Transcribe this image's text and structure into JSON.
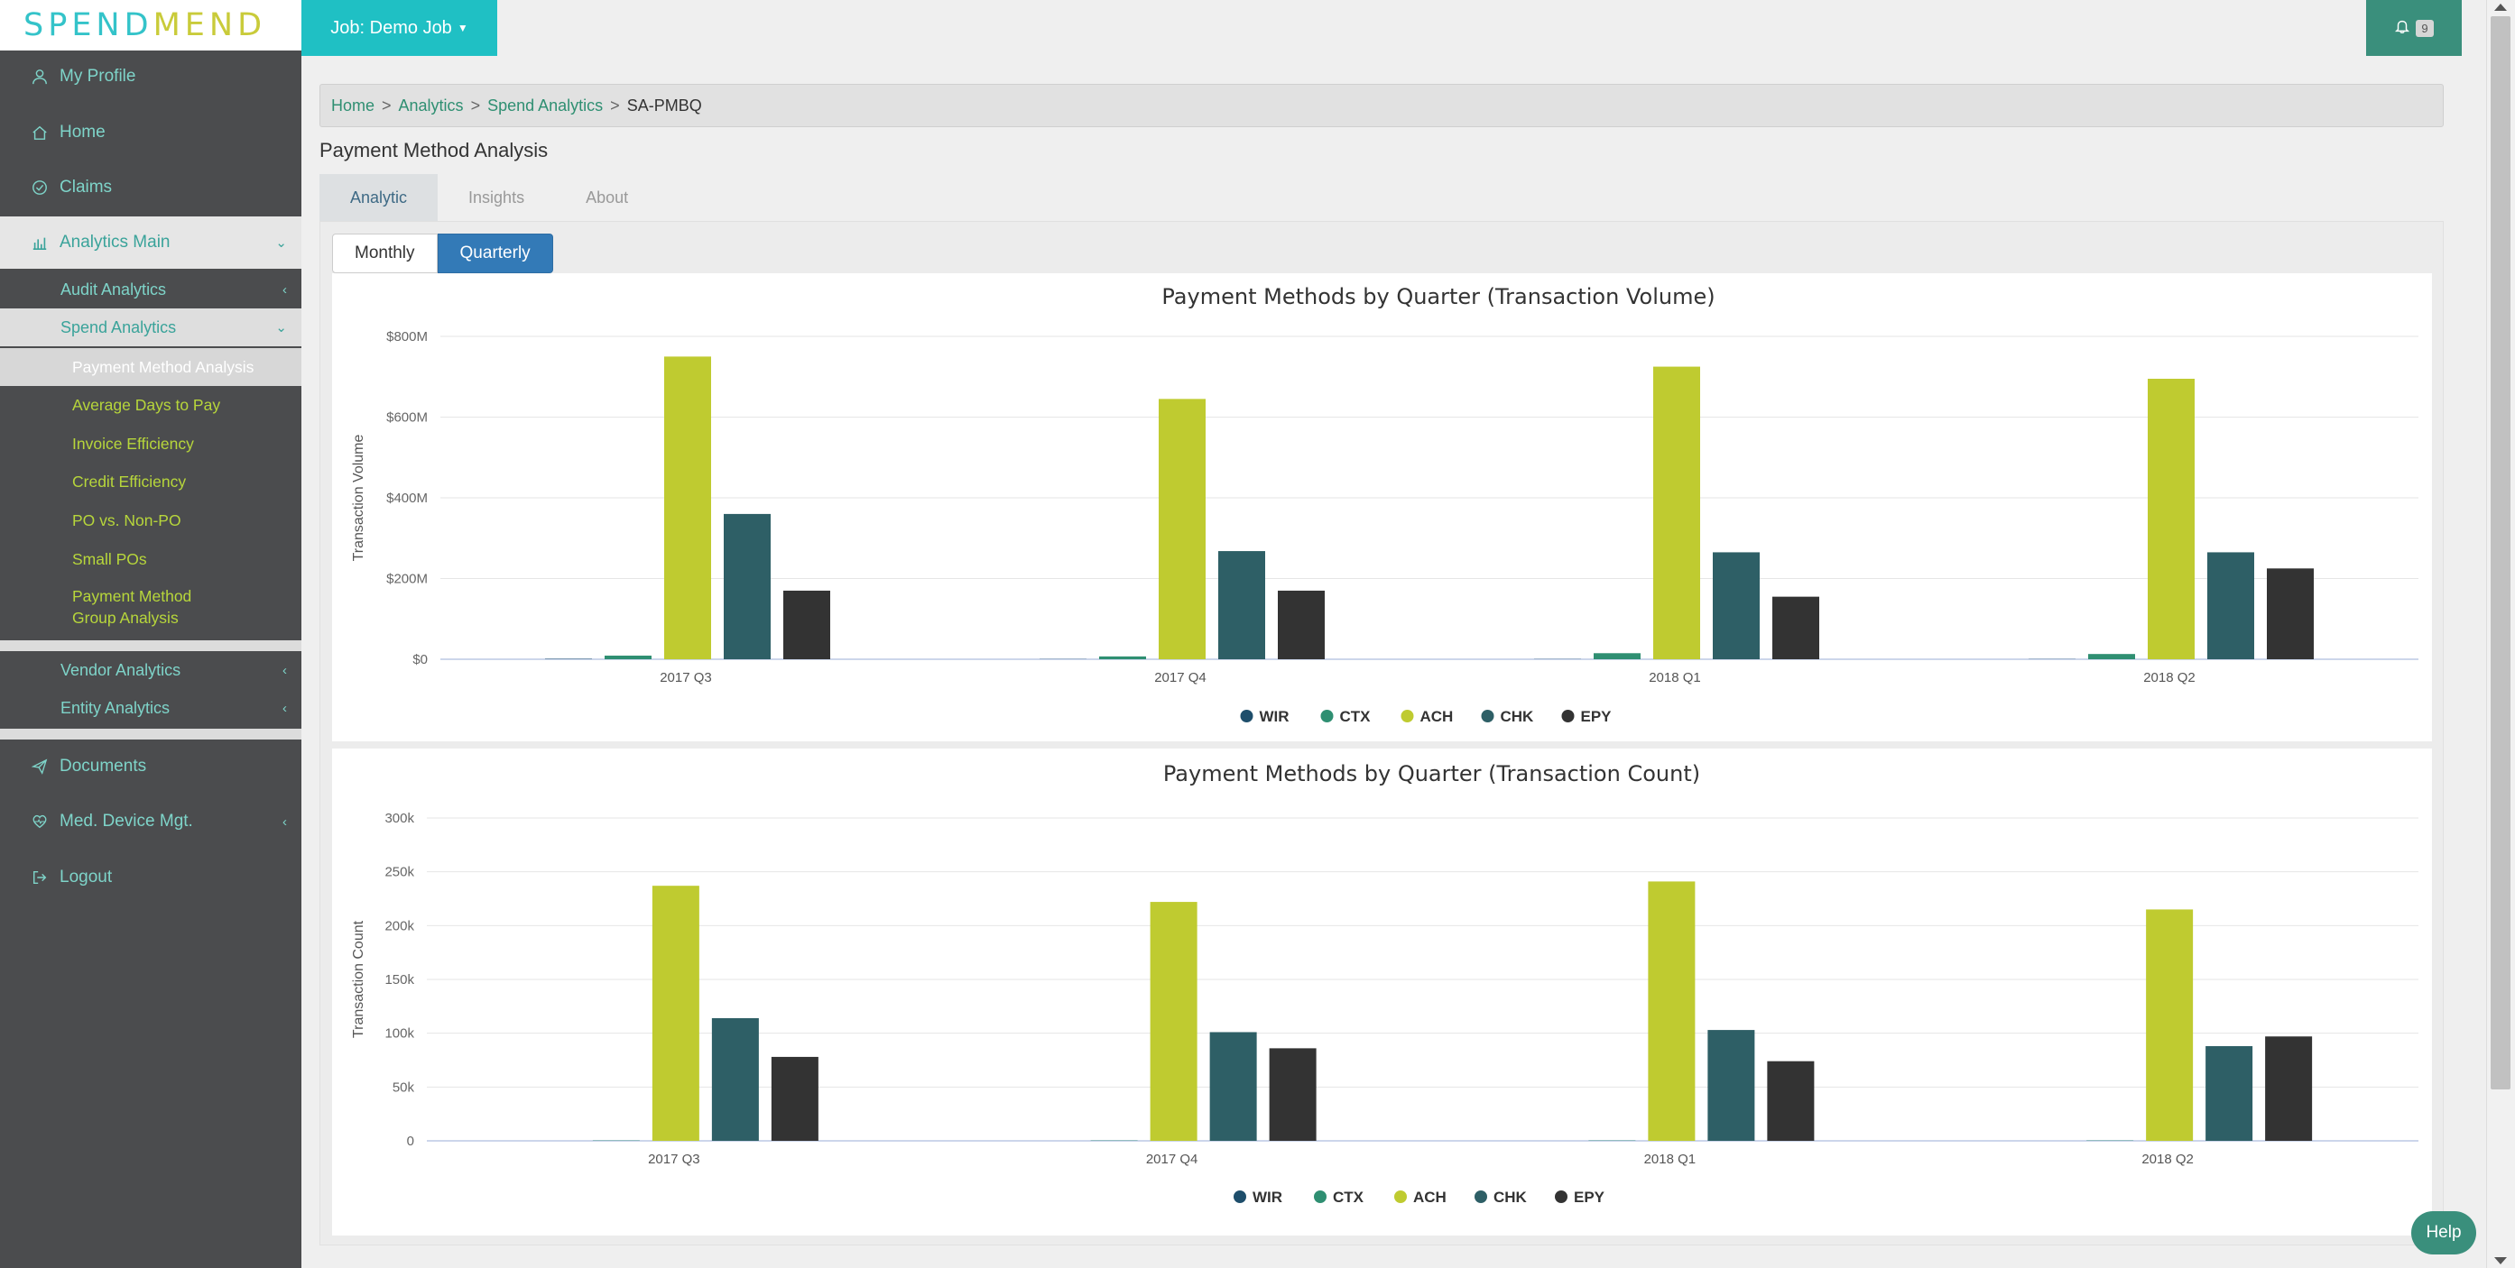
{
  "brand": {
    "part1": "SPEND",
    "part2": "MEND"
  },
  "sidebar": {
    "items": [
      {
        "label": "My Profile",
        "icon": "user-icon"
      },
      {
        "label": "Home",
        "icon": "home-icon"
      },
      {
        "label": "Claims",
        "icon": "check-circle-icon"
      },
      {
        "label": "Analytics Main",
        "icon": "bar-chart-icon"
      },
      {
        "label": "Documents",
        "icon": "paper-plane-icon"
      },
      {
        "label": "Med. Device Mgt.",
        "icon": "heartbeat-icon"
      },
      {
        "label": "Logout",
        "icon": "sign-out-icon"
      }
    ],
    "analytics_sub": [
      "Audit Analytics",
      "Spend Analytics",
      "Vendor Analytics",
      "Entity Analytics"
    ],
    "spend_sub": [
      "Payment Method Analysis",
      "Average Days to Pay",
      "Invoice Efficiency",
      "Credit Efficiency",
      "PO vs. Non-PO",
      "Small POs",
      "Payment Method Group Analysis"
    ]
  },
  "topbar": {
    "job_label": "Job: Demo Job",
    "notification_count": "9"
  },
  "breadcrumb": {
    "home": "Home",
    "analytics": "Analytics",
    "spend": "Spend Analytics",
    "current": "SA-PMBQ"
  },
  "page_title": "Payment Method Analysis",
  "tabs": [
    "Analytic",
    "Insights",
    "About"
  ],
  "period_toggle": {
    "monthly": "Monthly",
    "quarterly": "Quarterly",
    "selected": "Quarterly"
  },
  "help_label": "Help",
  "colors": {
    "WIR": "#1e4e6b",
    "CTX": "#2f8f72",
    "ACH": "#bfcb30",
    "CHK": "#2e5f66",
    "EPY": "#333333"
  },
  "chart_data": [
    {
      "type": "bar",
      "title": "Payment Methods by Quarter (Transaction Volume)",
      "ylabel": "Transaction Volume",
      "categories": [
        "2017 Q3",
        "2017 Q4",
        "2018 Q1",
        "2018 Q2"
      ],
      "yticks": [
        "$0",
        "$200M",
        "$400M",
        "$600M",
        "$800M"
      ],
      "ylim": [
        0,
        800
      ],
      "series": [
        {
          "name": "WIR",
          "values": [
            1,
            0.5,
            0.5,
            0.5
          ]
        },
        {
          "name": "CTX",
          "values": [
            9,
            7,
            15,
            13
          ]
        },
        {
          "name": "ACH",
          "values": [
            750,
            645,
            725,
            695
          ]
        },
        {
          "name": "CHK",
          "values": [
            360,
            268,
            265,
            265
          ]
        },
        {
          "name": "EPY",
          "values": [
            170,
            170,
            155,
            225
          ]
        }
      ],
      "legend": "bottom"
    },
    {
      "type": "bar",
      "title": "Payment Methods by Quarter (Transaction Count)",
      "ylabel": "Transaction Count",
      "categories": [
        "2017 Q3",
        "2017 Q4",
        "2018 Q1",
        "2018 Q2"
      ],
      "yticks": [
        "0",
        "50k",
        "100k",
        "150k",
        "200k",
        "250k",
        "300k"
      ],
      "ylim": [
        0,
        300
      ],
      "series": [
        {
          "name": "WIR",
          "values": [
            0,
            0,
            0,
            0
          ]
        },
        {
          "name": "CTX",
          "values": [
            0.3,
            0.3,
            0.3,
            0.3
          ]
        },
        {
          "name": "ACH",
          "values": [
            237,
            222,
            241,
            215
          ]
        },
        {
          "name": "CHK",
          "values": [
            114,
            101,
            103,
            88
          ]
        },
        {
          "name": "EPY",
          "values": [
            78,
            86,
            74,
            97
          ]
        }
      ],
      "legend": "bottom"
    }
  ]
}
